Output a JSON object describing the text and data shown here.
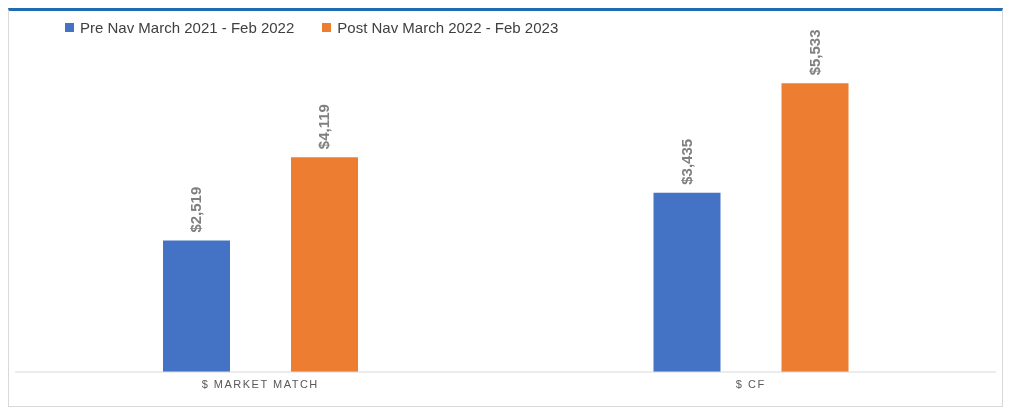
{
  "chart_data": {
    "type": "bar",
    "categories": [
      "$ MARKET MATCH",
      "$ CF"
    ],
    "series": [
      {
        "name": "Pre Nav March 2021 - Feb 2022",
        "color": "#4472c4",
        "values": [
          2519,
          3435
        ],
        "value_labels": [
          "$2,519",
          "$3,435"
        ]
      },
      {
        "name": "Post Nav March 2022 - Feb 2023",
        "color": "#ed7d31",
        "values": [
          4119,
          5533
        ],
        "value_labels": [
          "$4,119",
          "$5,533"
        ]
      }
    ],
    "tick_labels": "x",
    "legend": "top left"
  }
}
